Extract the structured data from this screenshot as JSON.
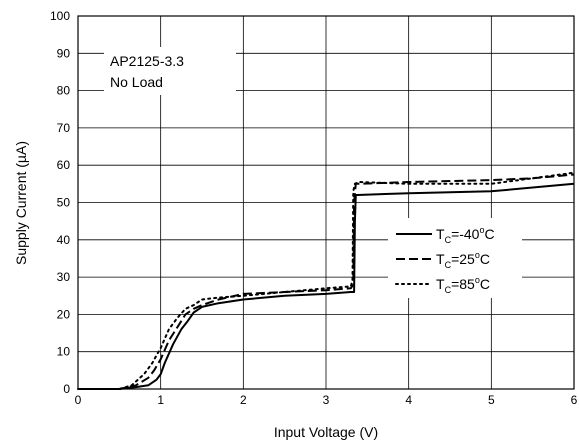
{
  "chart_data": {
    "type": "line",
    "xlabel": "Input Voltage (V)",
    "ylabel": "Supply Current (µA)",
    "xlim": [
      0,
      6
    ],
    "ylim": [
      0,
      100
    ],
    "xticks": [
      0,
      1,
      2,
      3,
      4,
      5,
      6
    ],
    "yticks": [
      0,
      10,
      20,
      30,
      40,
      50,
      60,
      70,
      80,
      90,
      100
    ],
    "xtick_labels": [
      "0",
      "1",
      "2",
      "3",
      "4",
      "5",
      "6"
    ],
    "ytick_labels": [
      "0",
      "10",
      "20",
      "30",
      "40",
      "50",
      "60",
      "70",
      "80",
      "90",
      "100"
    ],
    "grid": true,
    "annotation": [
      "AP2125-3.3",
      "No Load"
    ],
    "legend_position": "right",
    "series": [
      {
        "legend_main": "T",
        "legend_sub": "C",
        "legend_mid": "=-40",
        "legend_sup": "o",
        "legend_end": "C",
        "dash": "solid",
        "x": [
          0,
          0.5,
          0.7,
          0.85,
          0.95,
          1.0,
          1.05,
          1.15,
          1.25,
          1.32,
          1.4,
          1.5,
          1.7,
          2.0,
          2.5,
          3.0,
          3.3,
          3.34,
          3.35,
          3.36,
          3.38,
          4.0,
          5.0,
          6.0
        ],
        "y": [
          0,
          0,
          0.5,
          1,
          2.5,
          4,
          7,
          12,
          16,
          18,
          20.5,
          22,
          23,
          24,
          25,
          25.5,
          26,
          26,
          45,
          52,
          52,
          52.5,
          53,
          55
        ]
      },
      {
        "legend_main": "T",
        "legend_sub": "C",
        "legend_mid": "=25",
        "legend_sup": "o",
        "legend_end": "C",
        "dash": "dashed",
        "x": [
          0,
          0.5,
          0.7,
          0.85,
          0.92,
          1.0,
          1.1,
          1.2,
          1.3,
          1.4,
          1.5,
          1.7,
          2.0,
          2.5,
          3.0,
          3.3,
          3.33,
          3.34,
          3.36,
          3.4,
          4.0,
          5.0,
          5.5,
          6.0
        ],
        "y": [
          0,
          0,
          1,
          3,
          5,
          8,
          13,
          16.5,
          20,
          21.5,
          22.5,
          24,
          25.5,
          26,
          26.5,
          27,
          28,
          50,
          55,
          55,
          55.5,
          56,
          56.5,
          57.5
        ]
      },
      {
        "legend_main": "T",
        "legend_sub": "C",
        "legend_mid": "=85",
        "legend_sup": "o",
        "legend_end": "C",
        "dash": "dotted",
        "x": [
          0,
          0.5,
          0.65,
          0.8,
          0.9,
          0.95,
          1.0,
          1.1,
          1.2,
          1.3,
          1.4,
          1.5,
          1.7,
          2.0,
          2.5,
          3.0,
          3.3,
          3.32,
          3.33,
          3.35,
          3.4,
          4.0,
          5.0,
          6.0
        ],
        "y": [
          0,
          0,
          1,
          4,
          7,
          9,
          11,
          16,
          19,
          21.5,
          22.5,
          24,
          24.5,
          25,
          26,
          27,
          27.5,
          29,
          53,
          55,
          55.5,
          55,
          55,
          58
        ]
      }
    ]
  }
}
